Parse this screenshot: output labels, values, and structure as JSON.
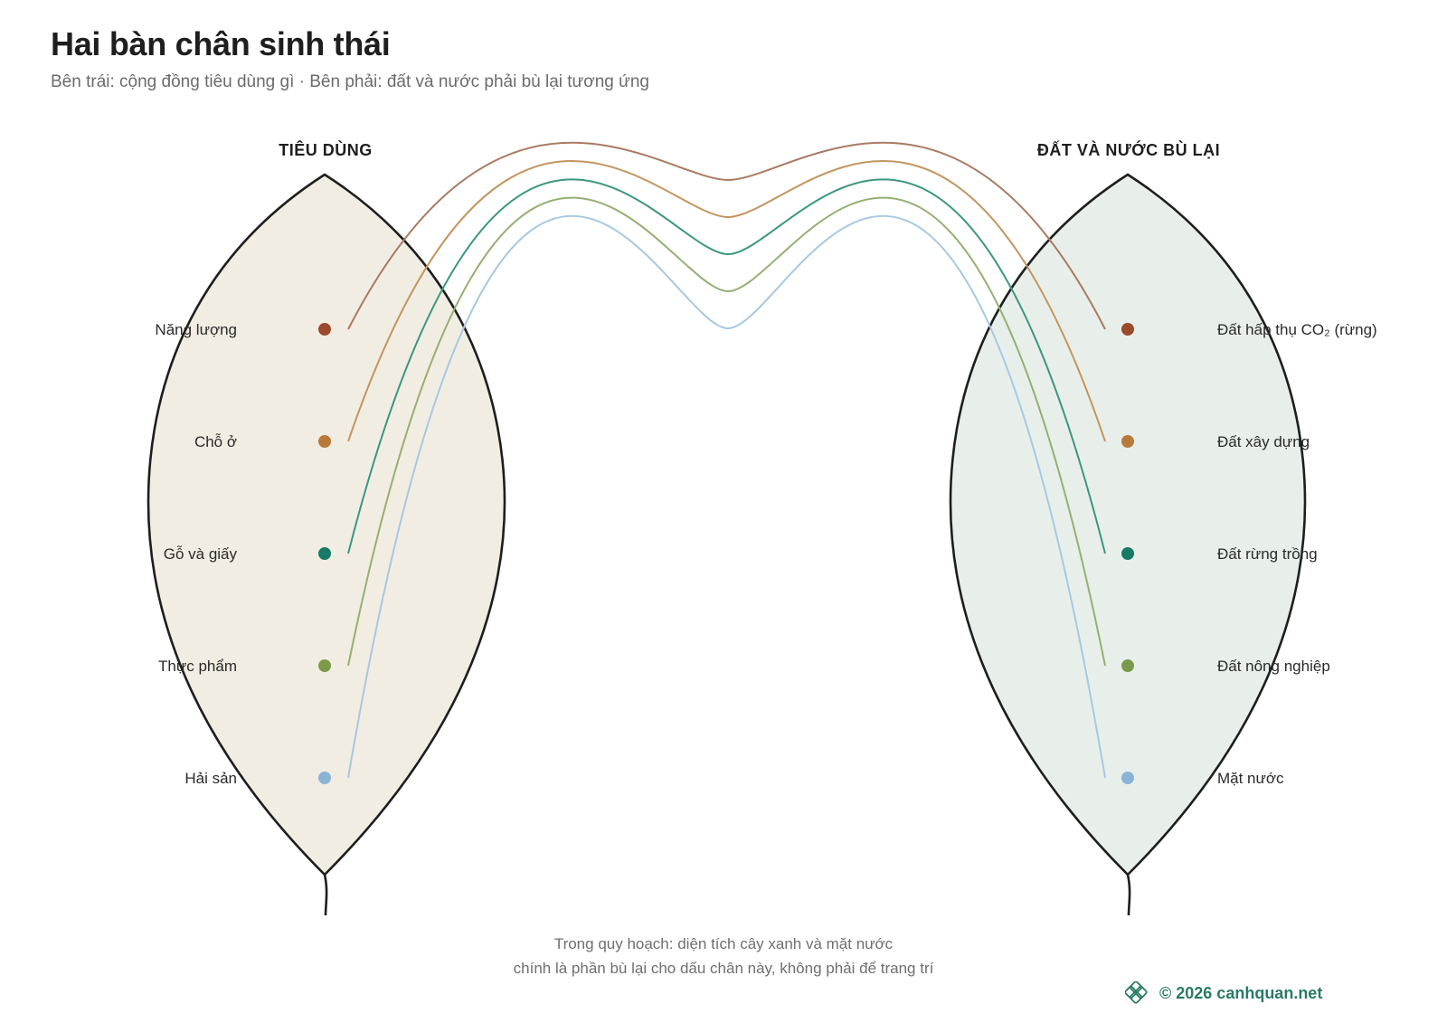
{
  "title": "Hai bàn chân sinh thái",
  "subtitle": "Bên trái: cộng đồng tiêu dùng gì · Bên phải: đất và nước phải bù lại tương ứng",
  "left_heading": "TIÊU DÙNG",
  "right_heading": "ĐẤT VÀ NƯỚC BÙ LẠI",
  "pairs": [
    {
      "left": "Năng lượng",
      "right": "Đất hấp thụ CO₂ (rừng)",
      "dot": "#9b4a2c",
      "line": "#a97a62"
    },
    {
      "left": "Chỗ ở",
      "right": "Đất xây dựng",
      "dot": "#b87a3a",
      "line": "#c39560"
    },
    {
      "left": "Gỗ và giấy",
      "right": "Đất rừng trồng",
      "dot": "#167a64",
      "line": "#3b9680"
    },
    {
      "left": "Thực phẩm",
      "right": "Đất nông nghiệp",
      "dot": "#7a9a4a",
      "line": "#94b072"
    },
    {
      "left": "Hải sản",
      "right": "Mặt nước",
      "dot": "#8ab4d6",
      "line": "#a6c8e2"
    }
  ],
  "colors": {
    "left_leaf_fill": "#f2ede3",
    "right_leaf_fill": "#e8efea",
    "leaf_stroke": "#1e1e1e",
    "brand": "#2a7a66"
  },
  "footer_note": [
    "Trong quy hoạch: diện tích cây xanh và mặt nước",
    "chính là phần bù lại cho dấu chân này, không phải để trang trí"
  ],
  "brand": {
    "icon": "knot-logo-icon",
    "text": "© 2026 canhquan.net"
  }
}
